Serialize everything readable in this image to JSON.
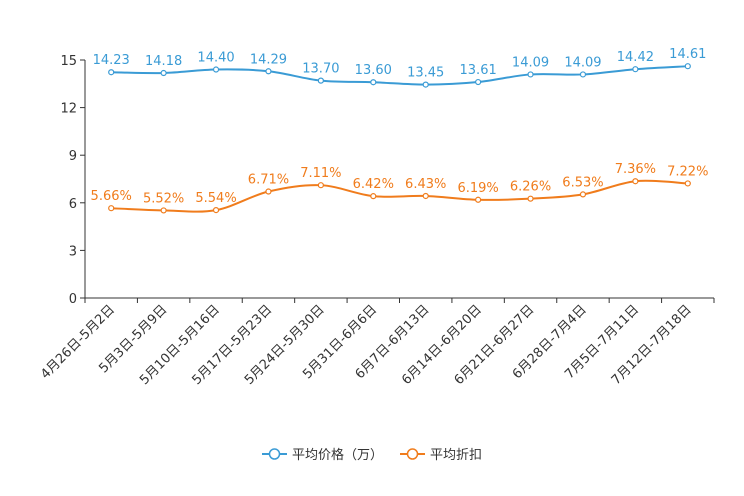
{
  "chart_data": {
    "type": "line",
    "title": "",
    "xlabel": "",
    "ylabel": "",
    "ylim": [
      0,
      15
    ],
    "yticks": [
      0,
      3,
      6,
      9,
      12,
      15
    ],
    "grid": false,
    "legend_position": "bottom",
    "categories": [
      "4月26日-5月2日",
      "5月3日-5月9日",
      "5月10日-5月16日",
      "5月17日-5月23日",
      "5月24日-5月30日",
      "5月31日-6月6日",
      "6月7日-6月13日",
      "6月14日-6月20日",
      "6月21日-6月27日",
      "6月28日-7月4日",
      "7月5日-7月11日",
      "7月12日-7月18日"
    ],
    "series": [
      {
        "name": "平均价格（万）",
        "color": "#3a9bd5",
        "values": [
          14.23,
          14.18,
          14.4,
          14.29,
          13.7,
          13.6,
          13.45,
          13.61,
          14.09,
          14.09,
          14.42,
          14.61
        ],
        "labels": [
          "14.23",
          "14.18",
          "14.40",
          "14.29",
          "13.70",
          "13.60",
          "13.45",
          "13.61",
          "14.09",
          "14.09",
          "14.42",
          "14.61"
        ]
      },
      {
        "name": "平均折扣",
        "color": "#f07c1c",
        "values": [
          5.66,
          5.52,
          5.54,
          6.71,
          7.11,
          6.42,
          6.43,
          6.19,
          6.26,
          6.53,
          7.36,
          7.22
        ],
        "labels": [
          "5.66%",
          "5.52%",
          "5.54%",
          "6.71%",
          "7.11%",
          "6.42%",
          "6.43%",
          "6.19%",
          "6.26%",
          "6.53%",
          "7.36%",
          "7.22%"
        ]
      }
    ]
  }
}
